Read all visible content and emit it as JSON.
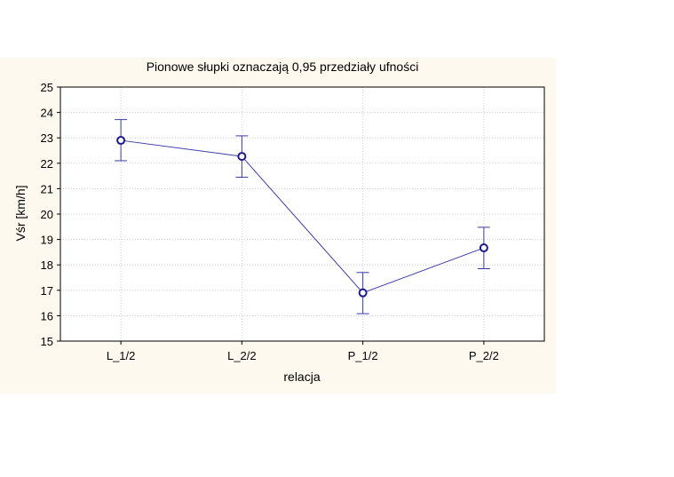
{
  "chart_data": {
    "type": "line",
    "title": "Pionowe słupki oznaczają 0,95 przedziały ufności",
    "xlabel": "relacja",
    "ylabel": "Vśr [km/h]",
    "categories": [
      "L_1/2",
      "L_2/2",
      "P_1/2",
      "P_2/2"
    ],
    "series": [
      {
        "values": [
          22.9,
          22.27,
          16.9,
          18.67
        ],
        "ci_lower": [
          22.1,
          21.45,
          16.08,
          17.85
        ],
        "ci_upper": [
          23.72,
          23.08,
          17.7,
          19.48
        ]
      }
    ],
    "ylim": [
      15,
      25
    ],
    "yticks": [
      "15",
      "16",
      "17",
      "18",
      "19",
      "20",
      "21",
      "22",
      "23",
      "24",
      "25"
    ],
    "grid": true,
    "colors": {
      "panel_background": "#fdf9ee",
      "plot_background": "#ffffff",
      "line": "#3a3aa8",
      "marker": "#1b1b8c",
      "grid": "#cfcfcf"
    }
  }
}
